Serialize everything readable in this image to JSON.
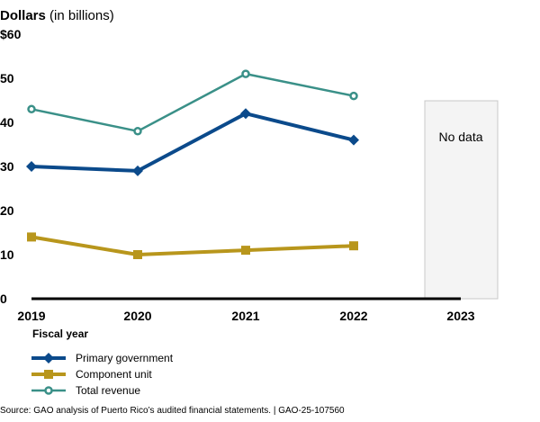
{
  "chart_data": {
    "type": "line",
    "title": "Dollars",
    "title_suffix": "(in billions)",
    "xlabel": "Fiscal year",
    "ylabel": "Dollars (in billions)",
    "ylim": [
      0,
      60
    ],
    "yticks": [
      0,
      10,
      20,
      30,
      40,
      50,
      60
    ],
    "ytick_labels": [
      "0",
      "10",
      "20",
      "30",
      "40",
      "50",
      "$60"
    ],
    "categories": [
      "2019",
      "2020",
      "2021",
      "2022",
      "2023"
    ],
    "grid": false,
    "series": [
      {
        "name": "Primary government",
        "color": "#0b4a8b",
        "marker": "diamond",
        "values": [
          30,
          29,
          42,
          36,
          null
        ]
      },
      {
        "name": "Component unit",
        "color": "#b8961c",
        "marker": "square",
        "values": [
          14,
          10,
          11,
          12,
          null
        ]
      },
      {
        "name": "Total revenue",
        "color": "#3a9088",
        "marker": "open-circle",
        "values": [
          43,
          38,
          51,
          46,
          null
        ]
      }
    ],
    "annotations": [
      {
        "category": "2023",
        "text": "No data",
        "fill": "#f4f4f4",
        "stroke": "#c8c8c8"
      }
    ],
    "legend_position": "bottom-left"
  },
  "source": "Source: GAO analysis of Puerto Rico’s audited financial statements.  |  GAO-25-107560"
}
